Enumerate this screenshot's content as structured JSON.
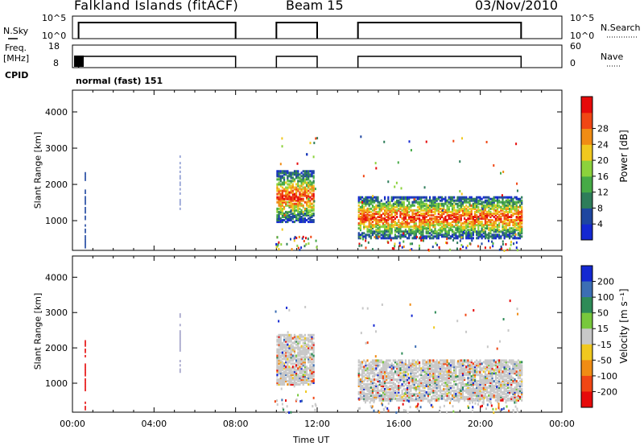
{
  "header": {
    "station": "Falkland Islands (fitACF)",
    "beam": "Beam 15",
    "date": "03/Nov/2010"
  },
  "strip_labels": {
    "nsky": "N.Sky",
    "freq_line1": "Freq.",
    "freq_line2": "[MHz]",
    "cpid": "CPID",
    "nsearch": "N.Search",
    "nave": "Nave",
    "cpid_value": "normal (fast) 151"
  },
  "chart_data": [
    {
      "type": "line",
      "name": "noise",
      "ylabel_left": "N.Sky",
      "ylabel_right": "N.Search",
      "left_ticks": [
        "10^5",
        "10^0"
      ],
      "right_ticks": [
        "10^5",
        "10^0"
      ],
      "segments_hours": [
        [
          0.3,
          8.0
        ],
        [
          10.0,
          12.0
        ],
        [
          14.0,
          22.0
        ]
      ]
    },
    {
      "type": "line",
      "name": "frequency",
      "ylabel_left": "Freq. [MHz]",
      "ylabel_right": "Nave",
      "left_ticks": [
        "18",
        "8"
      ],
      "right_ticks": [
        "60",
        "0"
      ],
      "segments_hours": [
        [
          0.3,
          8.0
        ],
        [
          10.0,
          12.0
        ],
        [
          14.0,
          22.0
        ]
      ]
    },
    {
      "type": "heatmap",
      "name": "power",
      "xlabel": "",
      "ylabel": "Slant Range [km]",
      "xlim_hours": [
        0,
        24
      ],
      "ylim": [
        180,
        4600
      ],
      "y_ticks": [
        1000,
        2000,
        3000,
        4000
      ],
      "colorbar_label": "Power [dB]",
      "colorbar_ticks": [
        "4",
        "8",
        "12",
        "16",
        "20",
        "24",
        "28"
      ],
      "colorbar_colors": [
        "#1428d2",
        "#1e46a0",
        "#2e7d5a",
        "#46aa46",
        "#8cd23c",
        "#f0c81e",
        "#f08c14",
        "#f04614",
        "#e60a0a"
      ],
      "scatter_regions": [
        {
          "t0": 10.0,
          "t1": 11.8,
          "r0": 1000,
          "r1": 2400
        },
        {
          "t0": 14.0,
          "t1": 22.0,
          "r0": 550,
          "r1": 1700
        }
      ]
    },
    {
      "type": "heatmap",
      "name": "velocity",
      "xlabel": "Time UT",
      "ylabel": "Slant Range [km]",
      "x_ticks": [
        "00:00",
        "04:00",
        "08:00",
        "12:00",
        "16:00",
        "20:00",
        "00:00"
      ],
      "xlim_hours": [
        0,
        24
      ],
      "ylim": [
        180,
        4600
      ],
      "y_ticks": [
        1000,
        2000,
        3000,
        4000
      ],
      "colorbar_label": "Velocity [m s⁻¹]",
      "colorbar_ticks": [
        "200",
        "100",
        "50",
        "15",
        "-15",
        "-50",
        "-100",
        "-200"
      ],
      "colorbar_colors": [
        "#1428d2",
        "#3c6eb4",
        "#2e8b57",
        "#78c83c",
        "#c8c8c8",
        "#f0c81e",
        "#f08c14",
        "#f04614",
        "#e60a0a"
      ]
    }
  ]
}
